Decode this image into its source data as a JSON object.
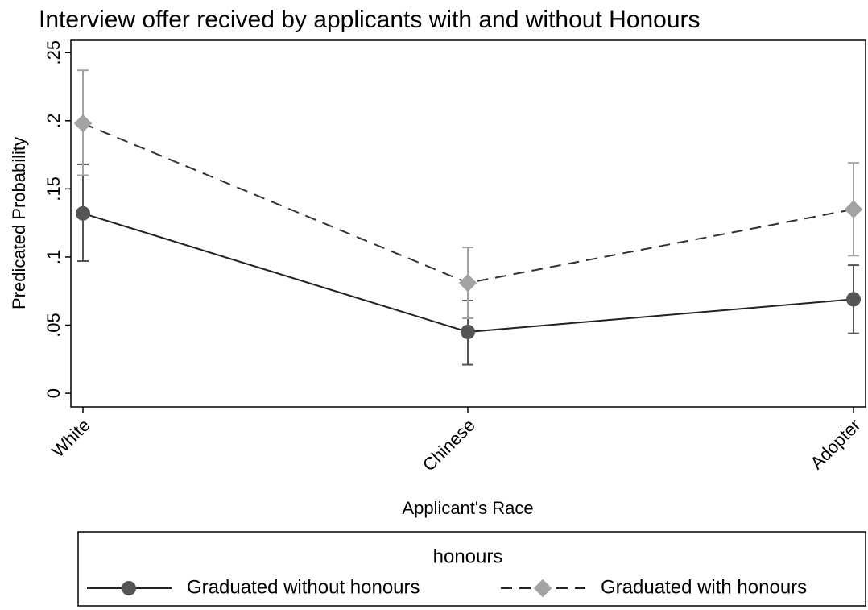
{
  "chart_data": {
    "type": "line",
    "title": "Interview offer recived by applicants with and without Honours",
    "x_label": "Applicant's Race",
    "y_label": "Predicated Probability",
    "categories": [
      "White",
      "Chinese",
      "Adopter"
    ],
    "series": [
      {
        "name": "Graduated without honours",
        "color": "#555555",
        "linestyle": "solid",
        "marker": "circle",
        "values": [
          0.132,
          0.045,
          0.069
        ],
        "ci_low": [
          0.097,
          0.021,
          0.044
        ],
        "ci_high": [
          0.168,
          0.068,
          0.094
        ]
      },
      {
        "name": "Graduated with honours",
        "color": "#a3a3a3",
        "linestyle": "dash",
        "marker": "diamond",
        "values": [
          0.198,
          0.081,
          0.135
        ],
        "ci_low": [
          0.16,
          0.055,
          0.101
        ],
        "ci_high": [
          0.237,
          0.107,
          0.169
        ]
      }
    ],
    "ylim": [
      -0.01,
      0.259
    ],
    "yticks": [
      0,
      {
        "value": 0.05,
        "label": ".05"
      },
      {
        "value": 0.1,
        "label": ".1"
      },
      {
        "value": 0.15,
        "label": ".15"
      },
      {
        "value": 0.2,
        "label": ".2"
      },
      {
        "value": 0.25,
        "label": ".25"
      }
    ],
    "grid": false,
    "legend_title": "honours",
    "legend": "bottom"
  }
}
